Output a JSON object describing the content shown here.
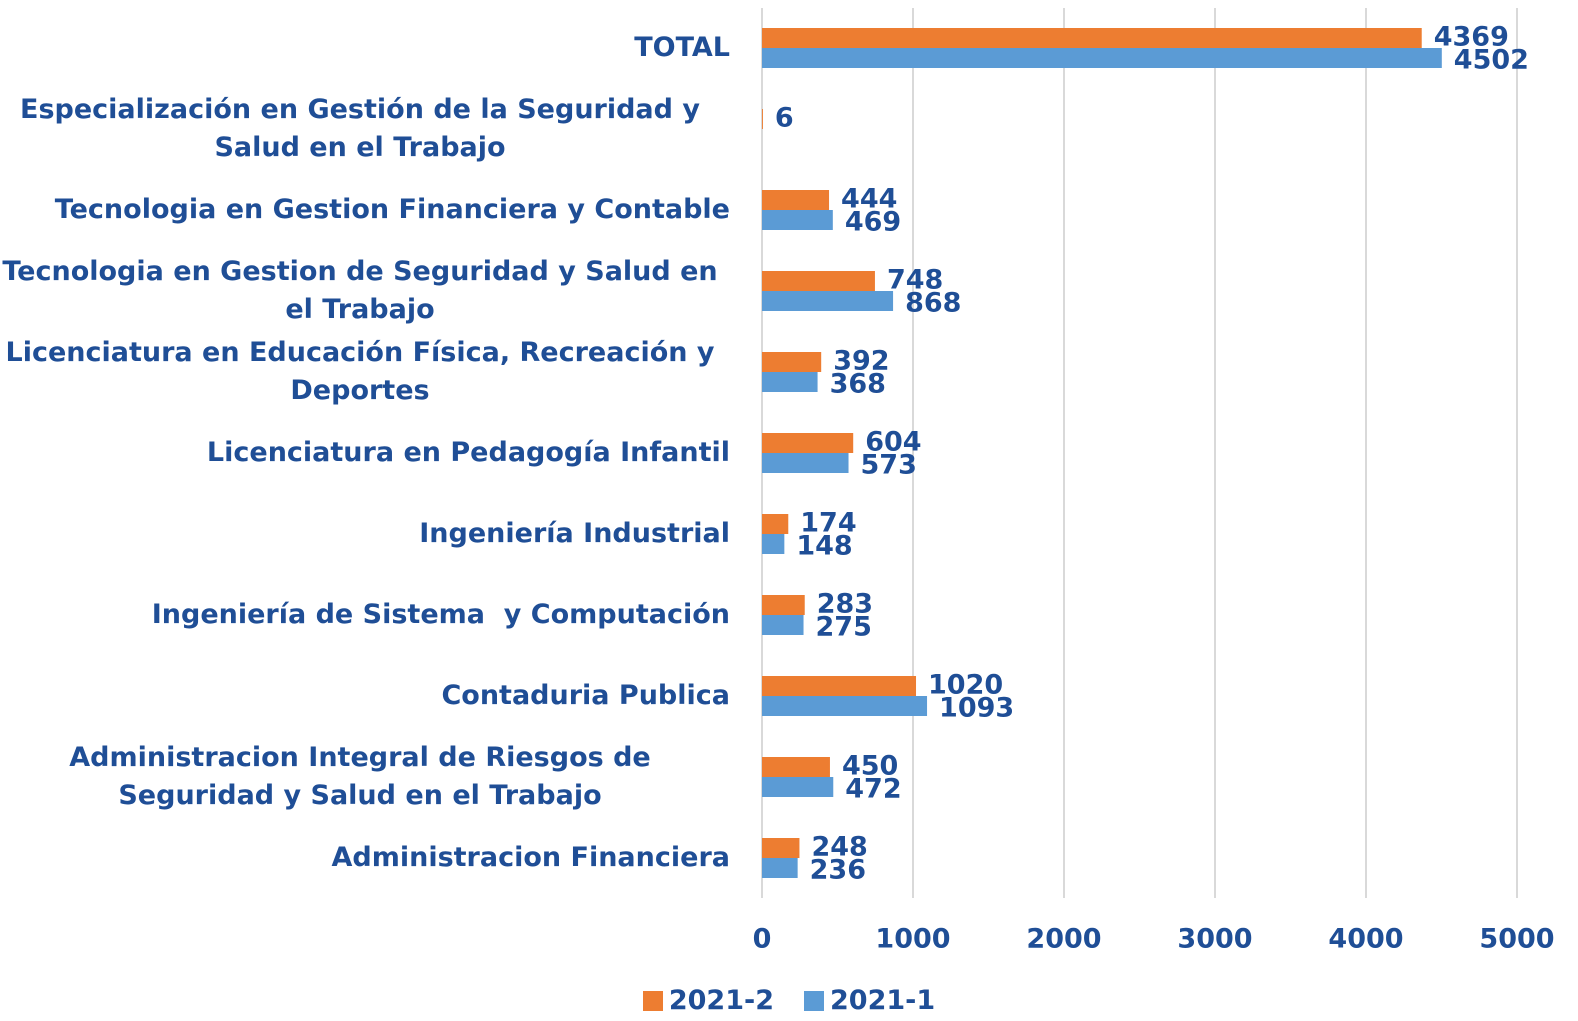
{
  "chart_data": {
    "type": "hbar",
    "categories": [
      "TOTAL",
      "Especialización en Gestión de la Seguridad y Salud en el Trabajo",
      "Tecnologia en Gestion Financiera y Contable",
      "Tecnologia en Gestion de Seguridad y Salud en el Trabajo",
      "Licenciatura en Educación Física, Recreación y Deportes",
      "Licenciatura en Pedagogía Infantil",
      "Ingeniería Industrial",
      "Ingeniería de Sistema  y Computación",
      "Contaduria Publica",
      "Administracion Integral de Riesgos de Seguridad y Salud en el Trabajo",
      "Administracion Financiera"
    ],
    "series": [
      {
        "name": "2021-2",
        "color": "#ed7d31",
        "values": [
          4369,
          6,
          444,
          748,
          392,
          604,
          174,
          283,
          1020,
          450,
          248
        ]
      },
      {
        "name": "2021-1",
        "color": "#5b9bd5",
        "values": [
          4502,
          null,
          469,
          868,
          368,
          573,
          148,
          275,
          1093,
          472,
          236
        ]
      }
    ],
    "xlim": [
      0,
      5000
    ],
    "xticks": [
      0,
      1000,
      2000,
      3000,
      4000,
      5000
    ],
    "grid": true,
    "legend": "bottom"
  }
}
